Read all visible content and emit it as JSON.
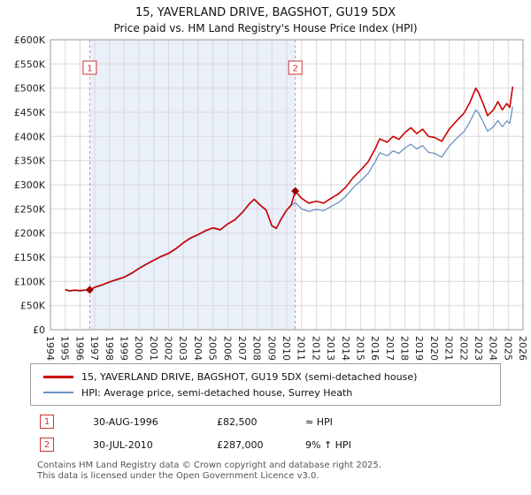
{
  "chart_data": {
    "type": "line",
    "title": "15, YAVERLAND DRIVE, BAGSHOT, GU19 5DX",
    "subtitle": "Price paid vs. HM Land Registry's House Price Index (HPI)",
    "x_range": [
      1994,
      2026
    ],
    "y_range": [
      0,
      600000
    ],
    "grid": true,
    "x_ticks": [
      1994,
      1995,
      1996,
      1997,
      1998,
      1999,
      2000,
      2001,
      2002,
      2003,
      2004,
      2005,
      2006,
      2007,
      2008,
      2009,
      2010,
      2011,
      2012,
      2013,
      2014,
      2015,
      2016,
      2017,
      2018,
      2019,
      2020,
      2021,
      2022,
      2023,
      2024,
      2025,
      2026
    ],
    "y_ticks": [
      {
        "v": 0,
        "label": "£0"
      },
      {
        "v": 50000,
        "label": "£50K"
      },
      {
        "v": 100000,
        "label": "£100K"
      },
      {
        "v": 150000,
        "label": "£150K"
      },
      {
        "v": 200000,
        "label": "£200K"
      },
      {
        "v": 250000,
        "label": "£250K"
      },
      {
        "v": 300000,
        "label": "£300K"
      },
      {
        "v": 350000,
        "label": "£350K"
      },
      {
        "v": 400000,
        "label": "£400K"
      },
      {
        "v": 450000,
        "label": "£450K"
      },
      {
        "v": 500000,
        "label": "£500K"
      },
      {
        "v": 550000,
        "label": "£550K"
      },
      {
        "v": 600000,
        "label": "£600K"
      }
    ],
    "x": [
      1995.0,
      1995.3,
      1995.6,
      1996.0,
      1996.3,
      1996.66,
      1997.0,
      1997.5,
      1998.0,
      1998.5,
      1999.0,
      1999.5,
      2000.0,
      2000.5,
      2001.0,
      2001.5,
      2002.0,
      2002.5,
      2003.0,
      2003.5,
      2004.0,
      2004.5,
      2005.0,
      2005.5,
      2006.0,
      2006.5,
      2007.0,
      2007.5,
      2007.8,
      2008.2,
      2008.6,
      2009.0,
      2009.3,
      2009.6,
      2010.0,
      2010.3,
      2010.58,
      2011.0,
      2011.5,
      2012.0,
      2012.5,
      2013.0,
      2013.5,
      2014.0,
      2014.5,
      2015.0,
      2015.5,
      2016.0,
      2016.3,
      2016.8,
      2017.2,
      2017.6,
      2018.0,
      2018.4,
      2018.8,
      2019.2,
      2019.6,
      2020.0,
      2020.5,
      2021.0,
      2021.5,
      2022.0,
      2022.4,
      2022.8,
      2023.0,
      2023.3,
      2023.6,
      2024.0,
      2024.3,
      2024.6,
      2024.9,
      2025.1,
      2025.3
    ],
    "series": [
      {
        "name": "15, YAVERLAND DRIVE, BAGSHOT, GU19 5DX (semi-detached house)",
        "color": "#cc0000",
        "width": 1.6,
        "values": [
          83000,
          80500,
          82000,
          81000,
          82000,
          82500,
          88000,
          93000,
          99000,
          104000,
          109000,
          117000,
          127000,
          136000,
          144000,
          152000,
          158000,
          168000,
          180000,
          190000,
          197000,
          205000,
          211000,
          207000,
          219000,
          228000,
          243000,
          262000,
          270000,
          258000,
          248000,
          215000,
          210000,
          228000,
          248000,
          258000,
          287000,
          272000,
          262000,
          266000,
          262000,
          272000,
          281000,
          295000,
          315000,
          330000,
          347000,
          375000,
          395000,
          388000,
          400000,
          394000,
          408000,
          418000,
          406000,
          415000,
          400000,
          398000,
          390000,
          415000,
          432000,
          448000,
          470000,
          500000,
          490000,
          468000,
          443000,
          455000,
          472000,
          455000,
          468000,
          460000,
          503000
        ]
      },
      {
        "name": "HPI: Average price, semi-detached house, Surrey Heath",
        "color": "#6c92c4",
        "width": 1.3,
        "values": [
          82000,
          79500,
          81000,
          80000,
          81000,
          82500,
          87000,
          92000,
          98000,
          103000,
          108000,
          116000,
          126000,
          135000,
          143000,
          151000,
          157000,
          167000,
          179000,
          189000,
          196000,
          204000,
          210000,
          206000,
          218000,
          227000,
          242000,
          261000,
          269000,
          257000,
          247000,
          214000,
          209000,
          227000,
          247000,
          257000,
          263000,
          250000,
          245000,
          249000,
          246000,
          255000,
          263000,
          276000,
          294000,
          308000,
          323000,
          348000,
          366000,
          360000,
          370000,
          365000,
          376000,
          384000,
          374000,
          381000,
          367000,
          365000,
          357000,
          380000,
          396000,
          410000,
          430000,
          455000,
          448000,
          430000,
          411000,
          420000,
          433000,
          420000,
          432000,
          427000,
          462000
        ]
      }
    ],
    "sale_markers": [
      {
        "label": "1",
        "x": 1996.66,
        "value": 82500
      },
      {
        "label": "2",
        "x": 2010.58,
        "value": 287000
      }
    ],
    "shaded_region": [
      1996.66,
      2010.58
    ],
    "colors": {
      "shade": "#eaf0fa",
      "grid": "#d9d9d9",
      "sale_line": "#e08a8a",
      "marker": "#990000",
      "box_border": "#cc3333",
      "plot_border": "#999999"
    }
  },
  "legend": {
    "items": [
      {
        "label": "15, YAVERLAND DRIVE, BAGSHOT, GU19 5DX (semi-detached house)",
        "color": "#cc0000"
      },
      {
        "label": "HPI: Average price, semi-detached house, Surrey Heath",
        "color": "#6c92c4"
      }
    ]
  },
  "transactions": [
    {
      "num": "1",
      "date": "30-AUG-1996",
      "price": "£82,500",
      "hpi": "≈ HPI"
    },
    {
      "num": "2",
      "date": "30-JUL-2010",
      "price": "£287,000",
      "hpi": "9% ↑ HPI"
    }
  ],
  "footer": {
    "line1": "Contains HM Land Registry data © Crown copyright and database right 2025.",
    "line2": "This data is licensed under the Open Government Licence v3.0."
  }
}
